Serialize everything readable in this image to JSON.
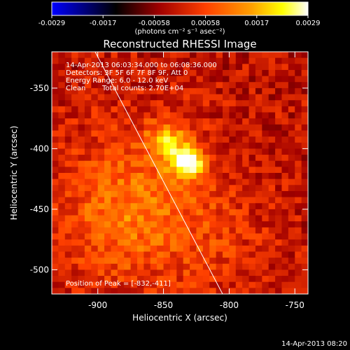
{
  "colorbar": {
    "ticks": [
      "-0.0029",
      "-0.0017",
      "-0.00058",
      "0.00058",
      "0.0017",
      "0.0029"
    ],
    "unit_label": "(photons cm⁻² s⁻¹ asec⁻²)",
    "colors": [
      "#0000ff",
      "#000000",
      "#a00000",
      "#ff4000",
      "#ffa000",
      "#ffff00",
      "#ffffff"
    ]
  },
  "chart_data": {
    "type": "heatmap",
    "title": "Reconstructed RHESSI Image",
    "xlabel": "Heliocentric X (arcsec)",
    "ylabel": "Heliocentric Y (arcsec)",
    "xlim": [
      -935,
      -740
    ],
    "ylim": [
      -520,
      -320
    ],
    "x_ticks": [
      "-900",
      "-850",
      "-800",
      "-750"
    ],
    "y_ticks": [
      "-350",
      "-400",
      "-450",
      "-500"
    ],
    "vmin": -0.0029,
    "vmax": 0.0029,
    "peak": [
      -832,
      -411
    ],
    "limb_line": [
      [
        -902,
        -320
      ],
      [
        -805,
        -520
      ]
    ],
    "sources": [
      {
        "x": -832,
        "y": -411,
        "sigma": 9,
        "value": 0.0029
      },
      {
        "x": -847,
        "y": -393,
        "sigma": 10,
        "value": 0.0017
      },
      {
        "x": -870,
        "y": -430,
        "sigma": 40,
        "value": 0.0009
      },
      {
        "x": -890,
        "y": -470,
        "sigma": 30,
        "value": 0.0006
      },
      {
        "x": -820,
        "y": -480,
        "sigma": 35,
        "value": 0.0005
      }
    ]
  },
  "annotations": {
    "time_range": "14-Apr-2013 06:03:34.000 to 06:08:36.000",
    "detectors": "Detectors: 3F 5F 6F 7F 8F 9F, Att 0",
    "energy_range": "Energy Range: 6.0 - 12.0 keV",
    "clean_label": "Clean",
    "total_counts": "Total counts: 2.70E+04",
    "peak_position": "Position of Peak = [-832,-411]"
  },
  "footer": {
    "timestamp": "14-Apr-2013 08:20"
  }
}
